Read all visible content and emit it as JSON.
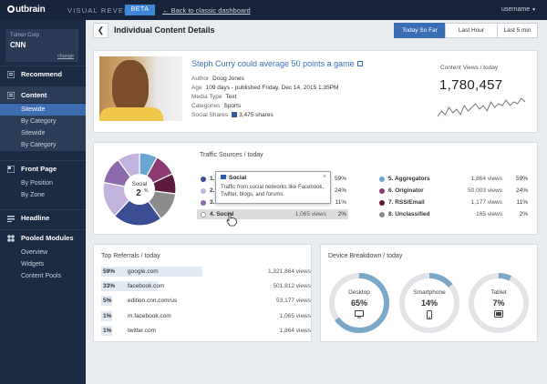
{
  "topbar": {
    "logo": "utbrain",
    "product": "VISUAL REVENUE",
    "badge": "BETA",
    "back_link": "← Back to classic dashboard",
    "user": "username"
  },
  "sidebar": {
    "account": {
      "corp": "Turner Corp",
      "site": "CNN",
      "change": "change"
    },
    "recommend": "Recommend",
    "content": "Content",
    "content_items": [
      "Sitewide",
      "By Category",
      "Sitewide",
      "By Category"
    ],
    "front_page": "Front Page",
    "front_items": [
      "By Position",
      "By Zone"
    ],
    "headline": "Headline",
    "pooled": "Pooled Modules",
    "pooled_items": [
      "Overview",
      "Widgets",
      "Content Pools"
    ]
  },
  "header": {
    "title": "Individual Content Details",
    "ranges": [
      "Today So Far",
      "Last Hour",
      "Last 5 min"
    ]
  },
  "article": {
    "title": "Steph Curry could average 50 points a game",
    "author_k": "Author",
    "author": "Doug Jones",
    "age_k": "Age",
    "age": "109 days  - published Friday, Dec 14, 2015 1:35PM",
    "media_k": "Media Type",
    "media": "Text",
    "cat_k": "Categories",
    "cat": "Sports",
    "shares_k": "Social Shares",
    "shares": "3,475 shares",
    "views_label": "Content Views / today",
    "views": "1,780,457",
    "spark": [
      6,
      9,
      7,
      11,
      8,
      10,
      7,
      12,
      9,
      11,
      13,
      10,
      12,
      9,
      14,
      11,
      13,
      12,
      15,
      12,
      14,
      13,
      16,
      14
    ]
  },
  "traffic": {
    "title": "Traffic Sources / today",
    "center_label": "Social",
    "center_value": "2",
    "center_unit": "%",
    "rows_left": [
      {
        "n": "1.",
        "pct": "59%",
        "color": "#3b4d93"
      },
      {
        "n": "2.",
        "pct": "24%",
        "color": "#c2b3de"
      },
      {
        "n": "3.",
        "pct": "11%",
        "color": "#8a6aac"
      },
      {
        "n": "4. Social",
        "views": "1,065 views",
        "pct": "2%",
        "color": "#ffffff"
      }
    ],
    "rows_right": [
      {
        "n": "5. Aggregators",
        "views": "1,864 views",
        "pct": "59%",
        "color": "#6aa6d3"
      },
      {
        "n": "6. Originator",
        "views": "50,003 views",
        "pct": "24%",
        "color": "#8d3b72"
      },
      {
        "n": "7. RSS/Email",
        "views": "1,177 views",
        "pct": "11%",
        "color": "#5c1a3e"
      },
      {
        "n": "8. Unclassified",
        "views": "165 views",
        "pct": "2%",
        "color": "#8c8c8c"
      }
    ],
    "tooltip": {
      "title": "Social",
      "body": "Traffic from social networks like Facebook, Twitter, blogs, and forums.",
      "close": "×"
    },
    "slices": [
      {
        "value": 8,
        "color": "#6aa6d3"
      },
      {
        "value": 10,
        "color": "#8d3b72"
      },
      {
        "value": 9,
        "color": "#5c1a3e"
      },
      {
        "value": 13,
        "color": "#8c8c8c"
      },
      {
        "value": 22,
        "color": "#3b4d93"
      },
      {
        "value": 16,
        "color": "#c2b3de"
      },
      {
        "value": 12,
        "color": "#8a6aac"
      },
      {
        "value": 10,
        "color": "#c2b3de"
      }
    ]
  },
  "referrals": {
    "title": "Top Referrals / today",
    "rows": [
      {
        "pct": "59%",
        "frac": 0.59,
        "domain": "google.com",
        "views": "1,321,864 views"
      },
      {
        "pct": "33%",
        "frac": 0.33,
        "domain": "facebook.com",
        "views": "501,812 views"
      },
      {
        "pct": "5%",
        "frac": 0.05,
        "domain": "edition.cnn.com/us",
        "views": "53,177 views"
      },
      {
        "pct": "1%",
        "frac": 0.01,
        "domain": "m.facebook.com",
        "views": "1,065 views"
      },
      {
        "pct": "1%",
        "frac": 0.01,
        "domain": "twitter.com",
        "views": "1,864 views"
      }
    ]
  },
  "devices": {
    "title": "Device Breakdown / today",
    "items": [
      {
        "label": "Desktop",
        "pct": "65%",
        "frac": 0.65,
        "icon": "monitor-icon"
      },
      {
        "label": "Smartphone",
        "pct": "14%",
        "frac": 0.14,
        "icon": "phone-icon"
      },
      {
        "label": "Tablet",
        "pct": "7%",
        "frac": 0.07,
        "icon": "tablet-icon"
      }
    ],
    "ring_color": "#7ba7c9",
    "track_color": "#e1e3e6"
  }
}
